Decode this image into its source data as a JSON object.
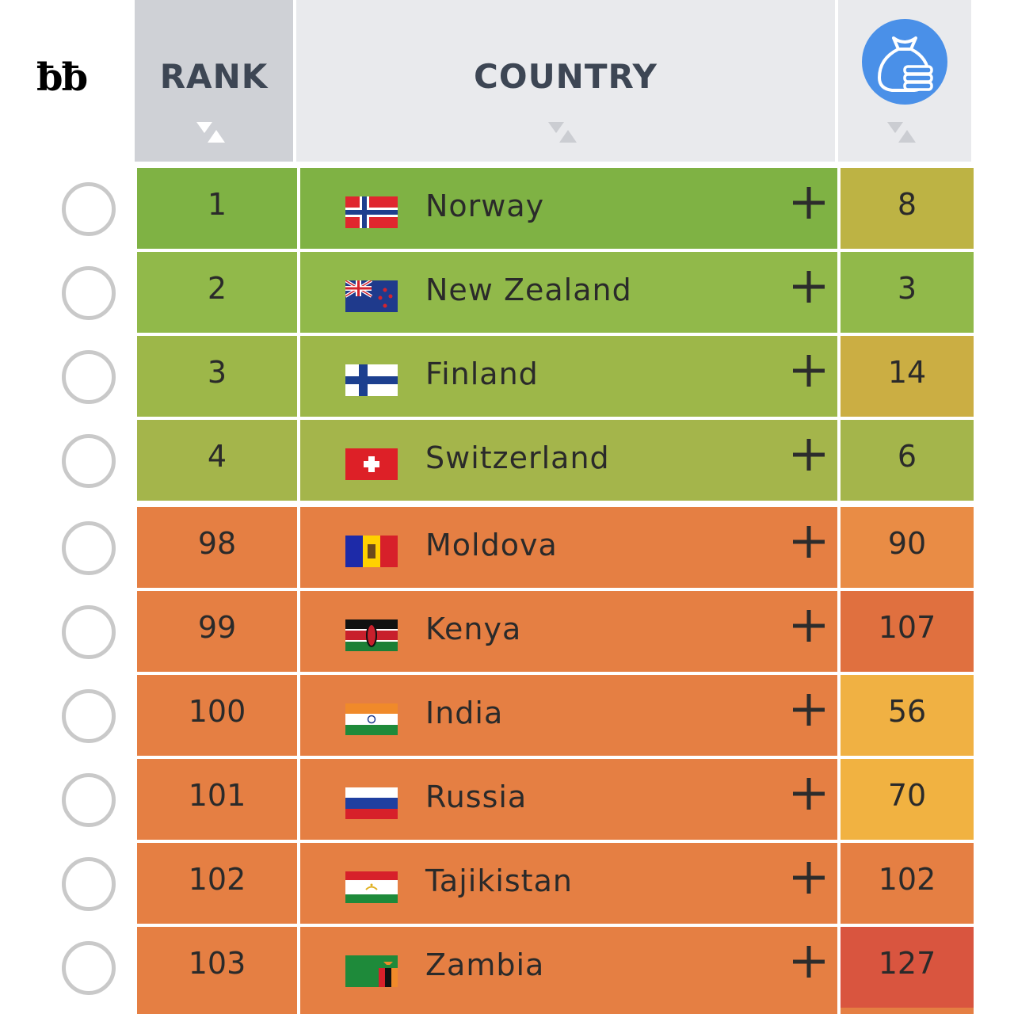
{
  "corner_glyph": "ƀƀ",
  "header": {
    "rank": "RANK",
    "country": "COUNTRY",
    "metric_icon": "money-bag-coins-icon"
  },
  "colors": {
    "green_1": "#7fb244",
    "green_2": "#91b94a",
    "green_3": "#9db749",
    "green_4": "#a4b54b",
    "orange": "#e57f43",
    "metric_olive": "#bdb344",
    "metric_gold_olive": "#cbae43",
    "metric_light_orange": "#e98c45",
    "metric_red_orange": "#e0703f",
    "metric_yellow": "#f0b143",
    "metric_amber": "#f1b241",
    "metric_red": "#d9553f"
  },
  "rows": [
    {
      "rank": "1",
      "country": "Norway",
      "flag": "norway-flag-icon",
      "metric": "8"
    },
    {
      "rank": "2",
      "country": "New Zealand",
      "flag": "new-zealand-flag-icon",
      "metric": "3"
    },
    {
      "rank": "3",
      "country": "Finland",
      "flag": "finland-flag-icon",
      "metric": "14"
    },
    {
      "rank": "4",
      "country": "Switzerland",
      "flag": "switzerland-flag-icon",
      "metric": "6"
    },
    {
      "rank": "98",
      "country": "Moldova",
      "flag": "moldova-flag-icon",
      "metric": "90"
    },
    {
      "rank": "99",
      "country": "Kenya",
      "flag": "kenya-flag-icon",
      "metric": "107"
    },
    {
      "rank": "100",
      "country": "India",
      "flag": "india-flag-icon",
      "metric": "56"
    },
    {
      "rank": "101",
      "country": "Russia",
      "flag": "russia-flag-icon",
      "metric": "70"
    },
    {
      "rank": "102",
      "country": "Tajikistan",
      "flag": "tajikistan-flag-icon",
      "metric": "102"
    },
    {
      "rank": "103",
      "country": "Zambia",
      "flag": "zambia-flag-icon",
      "metric": "127"
    }
  ]
}
